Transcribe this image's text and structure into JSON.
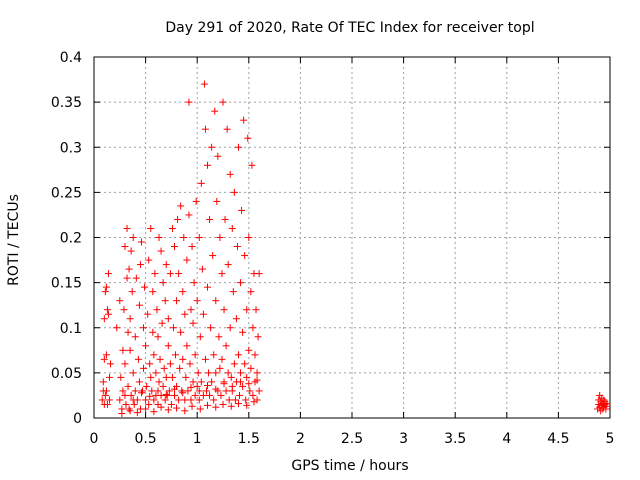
{
  "chart_data": {
    "type": "scatter",
    "title": "Day 291 of 2020, Rate Of TEC Index for receiver topl",
    "xlabel": "GPS time / hours",
    "ylabel": "ROTI / TECUs",
    "xlim": [
      0,
      5
    ],
    "ylim": [
      0,
      0.4
    ],
    "x_ticks": [
      "0",
      "0.5",
      "1",
      "1.5",
      "2",
      "2.5",
      "3",
      "3.5",
      "4",
      "4.5",
      "5"
    ],
    "y_ticks": [
      "0",
      "0.05",
      "0.1",
      "0.15",
      "0.2",
      "0.25",
      "0.3",
      "0.35",
      "0.4"
    ],
    "grid": true,
    "marker": "+",
    "color": "#ff0000",
    "series": [
      {
        "points": [
          [
            0.08,
            0.02
          ],
          [
            0.09,
            0.04
          ],
          [
            0.1,
            0.015
          ],
          [
            0.1,
            0.065
          ],
          [
            0.1,
            0.11
          ],
          [
            0.11,
            0.025
          ],
          [
            0.11,
            0.14
          ],
          [
            0.12,
            0.07
          ],
          [
            0.12,
            0.03
          ],
          [
            0.13,
            0.015
          ],
          [
            0.14,
            0.16
          ],
          [
            0.14,
            0.115
          ],
          [
            0.15,
            0.02
          ],
          [
            0.15,
            0.045
          ],
          [
            0.16,
            0.06
          ],
          [
            0.12,
            0.145
          ],
          [
            0.09,
            0.03
          ],
          [
            0.13,
            0.12
          ],
          [
            0.22,
            0.1
          ],
          [
            0.25,
            0.13
          ],
          [
            0.25,
            0.02
          ],
          [
            0.26,
            0.045
          ],
          [
            0.27,
            0.01
          ],
          [
            0.28,
            0.075
          ],
          [
            0.28,
            0.03
          ],
          [
            0.29,
            0.12
          ],
          [
            0.3,
            0.19
          ],
          [
            0.3,
            0.06
          ],
          [
            0.31,
            0.015
          ],
          [
            0.32,
            0.155
          ],
          [
            0.32,
            0.21
          ],
          [
            0.33,
            0.035
          ],
          [
            0.33,
            0.095
          ],
          [
            0.34,
            0.165
          ],
          [
            0.34,
            0.01
          ],
          [
            0.35,
            0.075
          ],
          [
            0.35,
            0.11
          ],
          [
            0.36,
            0.185
          ],
          [
            0.36,
            0.025
          ],
          [
            0.37,
            0.14
          ],
          [
            0.38,
            0.05
          ],
          [
            0.38,
            0.2
          ],
          [
            0.39,
            0.015
          ],
          [
            0.4,
            0.09
          ],
          [
            0.4,
            0.03
          ],
          [
            0.41,
            0.155
          ],
          [
            0.42,
            0.02
          ],
          [
            0.43,
            0.065
          ],
          [
            0.44,
            0.125
          ],
          [
            0.44,
            0.04
          ],
          [
            0.45,
            0.17
          ],
          [
            0.45,
            0.01
          ],
          [
            0.46,
            0.195
          ],
          [
            0.47,
            0.03
          ],
          [
            0.48,
            0.1
          ],
          [
            0.48,
            0.055
          ],
          [
            0.49,
            0.145
          ],
          [
            0.5,
            0.02
          ],
          [
            0.5,
            0.08
          ],
          [
            0.51,
            0.035
          ],
          [
            0.52,
            0.115
          ],
          [
            0.53,
            0.015
          ],
          [
            0.53,
            0.175
          ],
          [
            0.54,
            0.06
          ],
          [
            0.55,
            0.045
          ],
          [
            0.55,
            0.21
          ],
          [
            0.56,
            0.03
          ],
          [
            0.57,
            0.095
          ],
          [
            0.57,
            0.14
          ],
          [
            0.58,
            0.02
          ],
          [
            0.58,
            0.07
          ],
          [
            0.59,
            0.16
          ],
          [
            0.6,
            0.025
          ],
          [
            0.6,
            0.05
          ],
          [
            0.61,
            0.12
          ],
          [
            0.62,
            0.015
          ],
          [
            0.62,
            0.09
          ],
          [
            0.63,
            0.04
          ],
          [
            0.63,
            0.2
          ],
          [
            0.64,
            0.065
          ],
          [
            0.65,
            0.185
          ],
          [
            0.65,
            0.025
          ],
          [
            0.66,
            0.105
          ],
          [
            0.67,
            0.035
          ],
          [
            0.67,
            0.15
          ],
          [
            0.68,
            0.055
          ],
          [
            0.69,
            0.02
          ],
          [
            0.69,
            0.13
          ],
          [
            0.7,
            0.045
          ],
          [
            0.7,
            0.17
          ],
          [
            0.71,
            0.025
          ],
          [
            0.72,
            0.08
          ],
          [
            0.72,
            0.11
          ],
          [
            0.73,
            0.03
          ],
          [
            0.74,
            0.16
          ],
          [
            0.74,
            0.06
          ],
          [
            0.75,
            0.015
          ],
          [
            0.76,
            0.21
          ],
          [
            0.76,
            0.045
          ],
          [
            0.77,
            0.1
          ],
          [
            0.78,
            0.025
          ],
          [
            0.78,
            0.19
          ],
          [
            0.79,
            0.07
          ],
          [
            0.8,
            0.13
          ],
          [
            0.8,
            0.035
          ],
          [
            0.81,
            0.22
          ],
          [
            0.82,
            0.02
          ],
          [
            0.82,
            0.16
          ],
          [
            0.83,
            0.055
          ],
          [
            0.84,
            0.095
          ],
          [
            0.84,
            0.235
          ],
          [
            0.85,
            0.03
          ],
          [
            0.86,
            0.14
          ],
          [
            0.86,
            0.065
          ],
          [
            0.87,
            0.2
          ],
          [
            0.88,
            0.02
          ],
          [
            0.88,
            0.115
          ],
          [
            0.89,
            0.045
          ],
          [
            0.9,
            0.175
          ],
          [
            0.9,
            0.08
          ],
          [
            0.91,
            0.03
          ],
          [
            0.92,
            0.225
          ],
          [
            0.92,
            0.35
          ],
          [
            0.93,
            0.06
          ],
          [
            0.94,
            0.12
          ],
          [
            0.94,
            0.02
          ],
          [
            0.95,
            0.19
          ],
          [
            0.96,
            0.04
          ],
          [
            0.96,
            0.105
          ],
          [
            0.97,
            0.15
          ],
          [
            0.98,
            0.025
          ],
          [
            0.98,
            0.07
          ],
          [
            0.99,
            0.24
          ],
          [
            1.0,
            0.035
          ],
          [
            1.0,
            0.13
          ],
          [
            1.01,
            0.05
          ],
          [
            1.02,
            0.2
          ],
          [
            1.02,
            0.02
          ],
          [
            1.03,
            0.09
          ],
          [
            1.04,
            0.26
          ],
          [
            1.04,
            0.04
          ],
          [
            1.05,
            0.165
          ],
          [
            1.06,
            0.025
          ],
          [
            1.06,
            0.115
          ],
          [
            1.07,
            0.37
          ],
          [
            1.08,
            0.065
          ],
          [
            1.08,
            0.32
          ],
          [
            1.09,
            0.03
          ],
          [
            1.1,
            0.145
          ],
          [
            1.1,
            0.28
          ],
          [
            1.11,
            0.05
          ],
          [
            1.12,
            0.22
          ],
          [
            1.12,
            0.025
          ],
          [
            1.13,
            0.1
          ],
          [
            1.14,
            0.3
          ],
          [
            1.14,
            0.04
          ],
          [
            1.15,
            0.18
          ],
          [
            1.16,
            0.07
          ],
          [
            1.16,
            0.02
          ],
          [
            1.17,
            0.34
          ],
          [
            1.18,
            0.13
          ],
          [
            1.18,
            0.05
          ],
          [
            1.19,
            0.24
          ],
          [
            1.2,
            0.03
          ],
          [
            1.2,
            0.29
          ],
          [
            1.21,
            0.09
          ],
          [
            1.22,
            0.055
          ],
          [
            1.22,
            0.2
          ],
          [
            1.23,
            0.025
          ],
          [
            1.24,
            0.16
          ],
          [
            1.24,
            0.065
          ],
          [
            1.25,
            0.35
          ],
          [
            1.26,
            0.04
          ],
          [
            1.26,
            0.12
          ],
          [
            1.27,
            0.22
          ],
          [
            1.28,
            0.03
          ],
          [
            1.28,
            0.08
          ],
          [
            1.29,
            0.32
          ],
          [
            1.3,
            0.05
          ],
          [
            1.3,
            0.17
          ],
          [
            1.31,
            0.02
          ],
          [
            1.32,
            0.27
          ],
          [
            1.32,
            0.1
          ],
          [
            1.33,
            0.045
          ],
          [
            1.34,
            0.21
          ],
          [
            1.34,
            0.03
          ],
          [
            1.35,
            0.14
          ],
          [
            1.36,
            0.06
          ],
          [
            1.36,
            0.25
          ],
          [
            1.37,
            0.02
          ],
          [
            1.38,
            0.11
          ],
          [
            1.38,
            0.04
          ],
          [
            1.39,
            0.19
          ],
          [
            1.4,
            0.07
          ],
          [
            1.4,
            0.3
          ],
          [
            1.41,
            0.025
          ],
          [
            1.42,
            0.15
          ],
          [
            1.42,
            0.05
          ],
          [
            1.43,
            0.23
          ],
          [
            1.44,
            0.035
          ],
          [
            1.44,
            0.095
          ],
          [
            1.45,
            0.33
          ],
          [
            1.46,
            0.06
          ],
          [
            1.46,
            0.18
          ],
          [
            1.47,
            0.02
          ],
          [
            1.48,
            0.12
          ],
          [
            1.48,
            0.045
          ],
          [
            1.49,
            0.31
          ],
          [
            1.5,
            0.075
          ],
          [
            1.5,
            0.2
          ],
          [
            1.51,
            0.03
          ],
          [
            1.52,
            0.14
          ],
          [
            1.52,
            0.055
          ],
          [
            1.53,
            0.28
          ],
          [
            1.54,
            0.025
          ],
          [
            1.54,
            0.1
          ],
          [
            1.55,
            0.16
          ],
          [
            1.56,
            0.04
          ],
          [
            1.56,
            0.07
          ],
          [
            1.57,
            0.12
          ],
          [
            1.58,
            0.05
          ],
          [
            1.58,
            0.02
          ],
          [
            1.59,
            0.09
          ],
          [
            1.6,
            0.16
          ],
          [
            1.6,
            0.03
          ],
          [
            0.27,
            0.005
          ],
          [
            0.35,
            0.008
          ],
          [
            0.42,
            0.006
          ],
          [
            0.5,
            0.01
          ],
          [
            0.58,
            0.007
          ],
          [
            0.65,
            0.012
          ],
          [
            0.72,
            0.009
          ],
          [
            0.8,
            0.011
          ],
          [
            0.88,
            0.008
          ],
          [
            0.95,
            0.013
          ],
          [
            1.03,
            0.01
          ],
          [
            1.1,
            0.014
          ],
          [
            1.18,
            0.012
          ],
          [
            1.25,
            0.015
          ],
          [
            1.33,
            0.013
          ],
          [
            1.4,
            0.016
          ],
          [
            1.48,
            0.014
          ],
          [
            1.55,
            0.018
          ],
          [
            0.3,
            0.025
          ],
          [
            0.38,
            0.02
          ],
          [
            0.46,
            0.028
          ],
          [
            0.54,
            0.024
          ],
          [
            0.62,
            0.03
          ],
          [
            0.7,
            0.026
          ],
          [
            0.78,
            0.032
          ],
          [
            0.86,
            0.028
          ],
          [
            0.94,
            0.034
          ],
          [
            1.02,
            0.03
          ],
          [
            1.1,
            0.036
          ],
          [
            1.18,
            0.032
          ],
          [
            1.26,
            0.038
          ],
          [
            1.34,
            0.035
          ],
          [
            1.42,
            0.04
          ],
          [
            1.5,
            0.038
          ],
          [
            1.58,
            0.042
          ],
          [
            4.88,
            0.01
          ],
          [
            4.89,
            0.02
          ],
          [
            4.89,
            0.015
          ],
          [
            4.9,
            0.025
          ],
          [
            4.9,
            0.012
          ],
          [
            4.91,
            0.018
          ],
          [
            4.91,
            0.008
          ],
          [
            4.92,
            0.022
          ],
          [
            4.92,
            0.014
          ],
          [
            4.93,
            0.016
          ],
          [
            4.93,
            0.01
          ],
          [
            4.94,
            0.02
          ],
          [
            4.94,
            0.012
          ],
          [
            4.95,
            0.015
          ],
          [
            4.95,
            0.018
          ],
          [
            4.96,
            0.01
          ],
          [
            4.96,
            0.013
          ],
          [
            4.97,
            0.016
          ]
        ]
      }
    ]
  }
}
